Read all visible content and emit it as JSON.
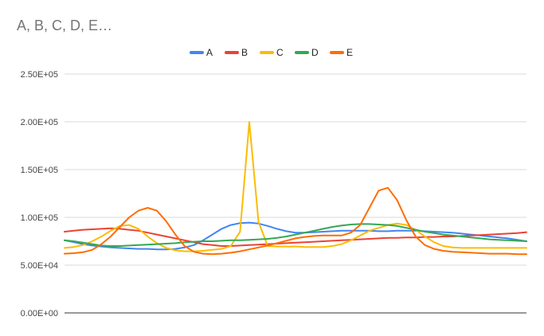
{
  "chart_data": {
    "type": "line",
    "title": "A, B, C, D, E…",
    "xlabel": "",
    "ylabel": "",
    "ylim": [
      0,
      250000
    ],
    "yticks": [
      "0.00E+00",
      "5.00E+04",
      "1.00E+05",
      "1.50E+05",
      "2.00E+05",
      "2.50E+05"
    ],
    "ytick_values": [
      0,
      50000,
      100000,
      150000,
      200000,
      250000
    ],
    "grid": true,
    "legend_position": "top",
    "x": [
      0,
      2,
      4,
      6,
      8,
      10,
      12,
      14,
      16,
      18,
      20,
      22,
      24,
      26,
      28,
      30,
      32,
      34,
      36,
      38,
      40,
      42,
      44,
      46,
      48,
      50,
      52,
      54,
      56,
      58,
      60,
      62,
      64,
      66,
      68,
      70,
      72,
      74,
      76,
      78,
      80,
      82,
      84,
      86,
      88,
      90,
      92,
      94,
      96,
      98,
      100
    ],
    "series": [
      {
        "name": "A",
        "color": "#4285f4",
        "values": [
          76000,
          74000,
          72000,
          70500,
          69500,
          68500,
          68000,
          67500,
          67000,
          67000,
          66500,
          66500,
          67000,
          68500,
          71000,
          76000,
          82000,
          88000,
          92000,
          94000,
          94500,
          93500,
          91000,
          88000,
          85500,
          84000,
          84000,
          84500,
          85000,
          85500,
          86000,
          86000,
          86000,
          86000,
          85500,
          85500,
          86000,
          86000,
          86000,
          85500,
          85000,
          84500,
          84000,
          83000,
          82000,
          81000,
          80000,
          79000,
          78000,
          76500,
          75000
        ]
      },
      {
        "name": "B",
        "color": "#ea4335",
        "values": [
          85000,
          86000,
          87000,
          87500,
          88000,
          88500,
          88000,
          87000,
          86000,
          84000,
          82000,
          80000,
          78000,
          76000,
          74000,
          72000,
          71000,
          70000,
          70000,
          70500,
          71000,
          71500,
          72000,
          72500,
          73000,
          73500,
          74000,
          74500,
          75000,
          75500,
          76000,
          76500,
          77000,
          77500,
          78000,
          78500,
          78500,
          79000,
          79000,
          79500,
          79500,
          80000,
          80000,
          80500,
          81000,
          81500,
          82000,
          82500,
          83000,
          83500,
          84500
        ]
      },
      {
        "name": "C",
        "color": "#fbbc04",
        "values": [
          68000,
          69000,
          71000,
          75000,
          80000,
          86000,
          91000,
          92000,
          88000,
          80000,
          73000,
          68000,
          65500,
          64500,
          64500,
          65000,
          66000,
          67000,
          70000,
          85000,
          200000,
          95000,
          70000,
          69500,
          69500,
          69500,
          69000,
          69000,
          69000,
          70000,
          72000,
          76000,
          81000,
          86000,
          89000,
          92000,
          93500,
          92000,
          87000,
          80000,
          74000,
          70000,
          68500,
          68000,
          68000,
          68000,
          68000,
          68000,
          68000,
          68000,
          68000
        ]
      },
      {
        "name": "D",
        "color": "#34a853",
        "values": [
          76000,
          75000,
          73500,
          72000,
          70500,
          70000,
          70000,
          70500,
          71000,
          71500,
          72000,
          72500,
          73000,
          74000,
          74500,
          75000,
          75000,
          75500,
          76000,
          76000,
          76500,
          77000,
          77500,
          78500,
          80000,
          82000,
          84000,
          86000,
          88000,
          90000,
          91500,
          92500,
          93000,
          93000,
          92500,
          92000,
          91000,
          89000,
          87000,
          85000,
          83500,
          82000,
          81000,
          80000,
          79000,
          78000,
          77000,
          76500,
          76000,
          75500,
          75000
        ]
      },
      {
        "name": "E",
        "color": "#ff6d01",
        "values": [
          62000,
          62500,
          63500,
          66000,
          72000,
          80000,
          90000,
          100000,
          107000,
          110000,
          107000,
          96000,
          82000,
          70000,
          64000,
          62000,
          61500,
          62000,
          63000,
          64500,
          66500,
          68500,
          70500,
          73000,
          75500,
          78000,
          79500,
          80500,
          81000,
          81000,
          81000,
          84000,
          92000,
          110000,
          128000,
          131000,
          118000,
          97000,
          80000,
          71000,
          67000,
          65000,
          64000,
          63500,
          63000,
          62500,
          62000,
          62000,
          62000,
          61500,
          61500
        ]
      }
    ]
  }
}
